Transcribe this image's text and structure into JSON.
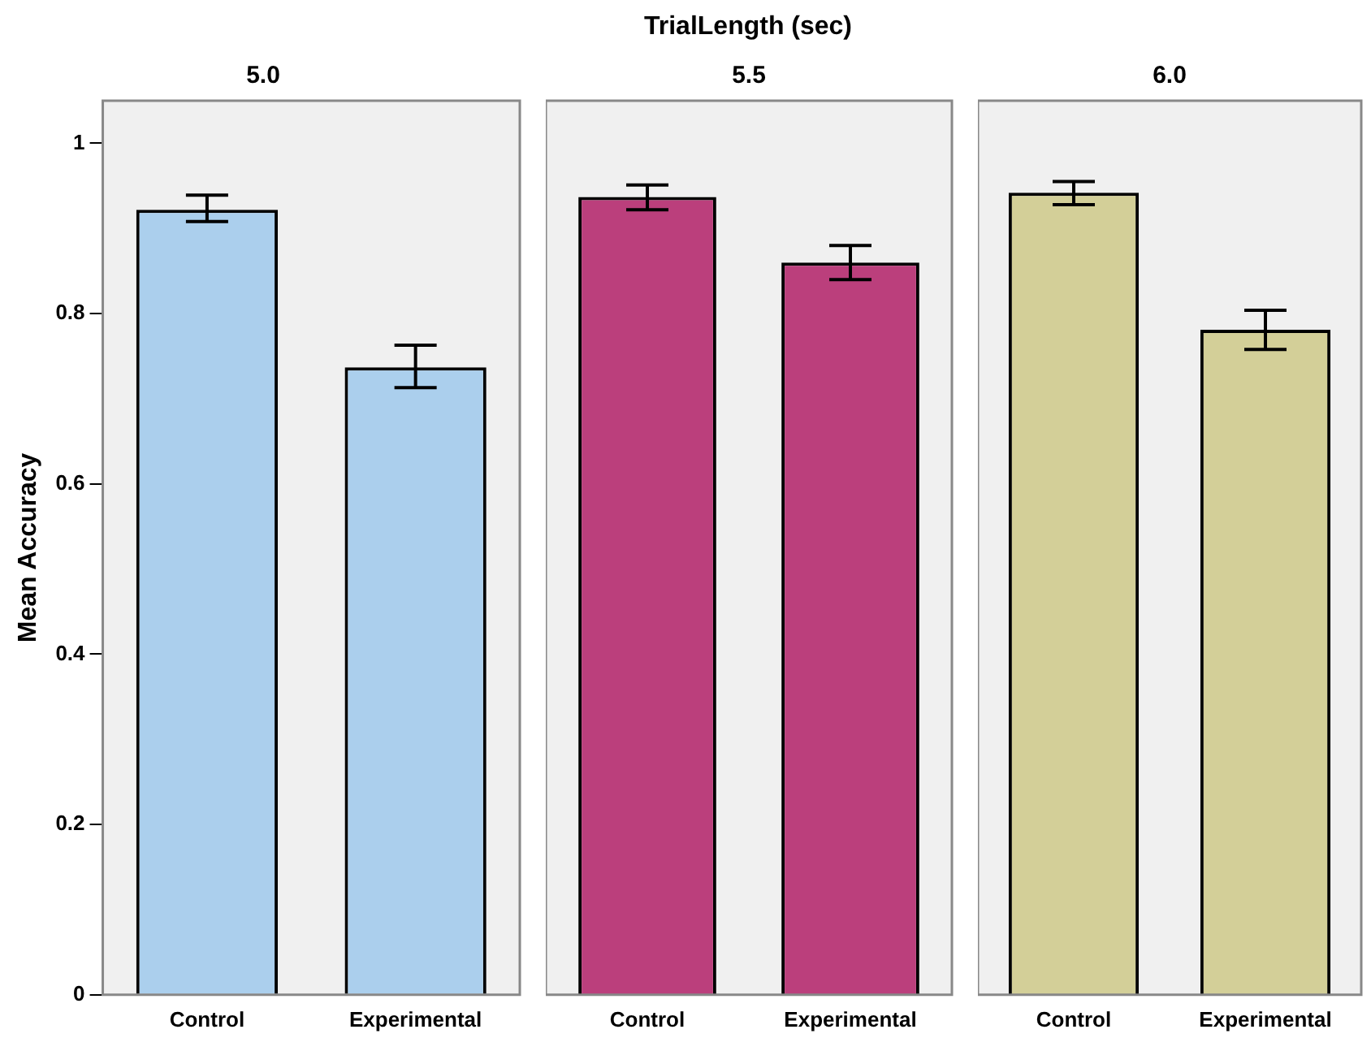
{
  "chart_data": [
    {
      "type": "other",
      "title": "TrialLength (sec)"
    },
    {
      "type": "bar",
      "title": "5.0",
      "ylabel": "Mean Accuracy",
      "categories": [
        "Control",
        "Experimental"
      ],
      "values": [
        0.922,
        0.737
      ],
      "color": "#abcfed",
      "errors": [
        [
          0.908,
          0.939
        ],
        [
          0.713,
          0.763
        ]
      ],
      "ylim": [
        0,
        1.05
      ],
      "yticks": [
        0,
        0.2,
        0.4,
        0.6,
        0.8,
        1
      ],
      "grid": false,
      "legend": false
    },
    {
      "type": "bar",
      "title": "5.5",
      "categories": [
        "Control",
        "Experimental"
      ],
      "values": [
        0.937,
        0.86
      ],
      "color": "#bb3f7c",
      "errors": [
        [
          0.922,
          0.951
        ],
        [
          0.84,
          0.88
        ]
      ],
      "ylim": [
        0,
        1.05
      ],
      "tick_labels": "x",
      "grid": false,
      "legend": false
    },
    {
      "type": "bar",
      "title": "6.0",
      "categories": [
        "Control",
        "Experimental"
      ],
      "values": [
        0.942,
        0.781
      ],
      "color": "#d3cf98",
      "errors": [
        [
          0.928,
          0.955
        ],
        [
          0.758,
          0.804
        ]
      ],
      "ylim": [
        0,
        1.05
      ],
      "tick_labels": "x",
      "grid": false,
      "legend": false
    }
  ]
}
